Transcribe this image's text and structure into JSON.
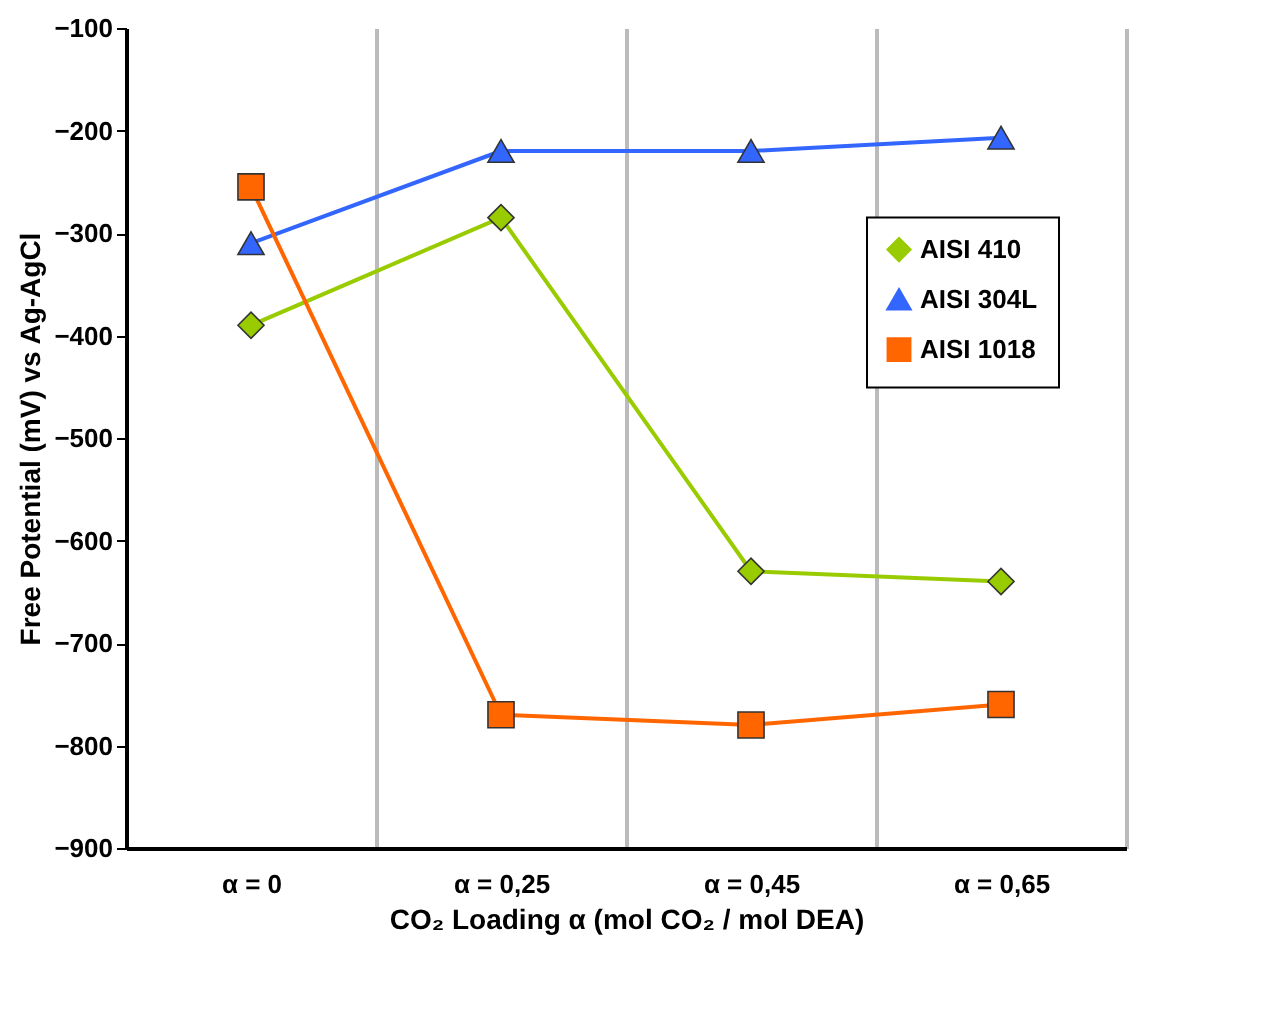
{
  "chart_data": {
    "type": "line",
    "xlabel": "CO₂ Loading α (mol CO₂ / mol DEA)",
    "ylabel": "Free Potential (mV) vs Ag-AgCl",
    "categories": [
      "α = 0",
      "α = 0,25",
      "α = 0,45",
      "α = 0,65"
    ],
    "series": [
      {
        "name": "AISI 410",
        "color": "#99cc00",
        "marker": "diamond",
        "values": [
          -390,
          -285,
          -630,
          -640
        ]
      },
      {
        "name": "AISI 304L",
        "color": "#3366ff",
        "marker": "triangle",
        "values": [
          -310,
          -220,
          -220,
          -207
        ]
      },
      {
        "name": "AISI 1018",
        "color": "#ff6600",
        "marker": "square",
        "values": [
          -255,
          -770,
          -780,
          -760
        ]
      }
    ],
    "ylim": [
      -900,
      -100
    ],
    "yticks": [
      -900,
      -800,
      -700,
      -600,
      -500,
      -400,
      -300,
      -200,
      -100
    ],
    "grid": "x",
    "legend": "top right"
  }
}
